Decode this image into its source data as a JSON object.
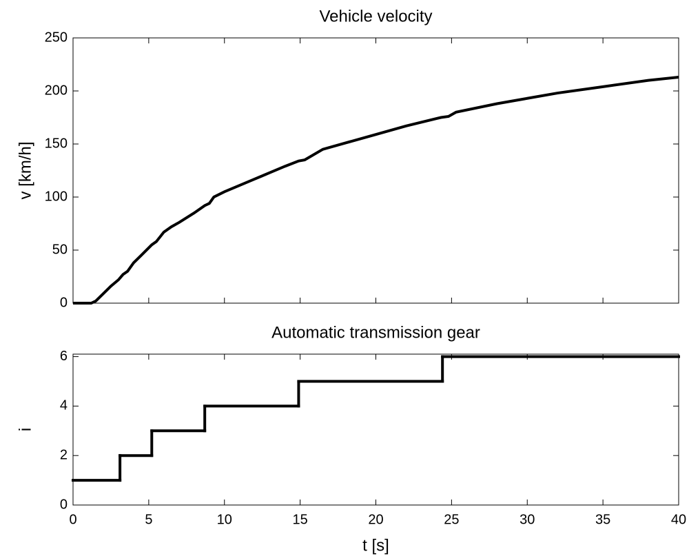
{
  "chart_data": [
    {
      "type": "line",
      "title": "Vehicle velocity",
      "ylabel": "v [km/h]",
      "color": "#000000",
      "x": [
        0,
        1.2,
        1.5,
        2,
        2.5,
        3,
        3.3,
        3.6,
        4,
        4.5,
        5.2,
        5.5,
        6,
        6.5,
        7,
        8,
        8.7,
        9,
        9.3,
        10,
        11,
        12,
        13,
        14,
        14.9,
        15.3,
        16.5,
        18,
        20,
        22,
        24.3,
        24.8,
        25.3,
        28,
        30,
        32,
        35,
        38,
        40
      ],
      "values": [
        0,
        0,
        2,
        9,
        16,
        22,
        27,
        30,
        38,
        45,
        55,
        58,
        67,
        72,
        76,
        85,
        92,
        94,
        100,
        105,
        111,
        117,
        123,
        129,
        134,
        135,
        145,
        151,
        159,
        167,
        175,
        176,
        180,
        188,
        193,
        198,
        204,
        210,
        213
      ],
      "xlim": [
        0,
        40
      ],
      "xticks": [
        0,
        5,
        10,
        15,
        20,
        25,
        30,
        35,
        40
      ],
      "xticklabels": false,
      "ylim": [
        0,
        250
      ],
      "yticks": [
        0,
        50,
        100,
        150,
        200,
        250
      ]
    },
    {
      "type": "step",
      "title": "Automatic transmission gear",
      "ylabel": "i",
      "xlabel": "t [s]",
      "color": "#000000",
      "x": [
        0,
        3.1,
        5.2,
        8.7,
        14.9,
        24.4
      ],
      "values": [
        1,
        2,
        3,
        4,
        5,
        6
      ],
      "xlim": [
        0,
        40
      ],
      "xticks": [
        0,
        5,
        10,
        15,
        20,
        25,
        30,
        35,
        40
      ],
      "xticklabels": true,
      "ylim": [
        0,
        6.1
      ],
      "yticks": [
        0,
        2,
        4,
        6
      ]
    }
  ]
}
